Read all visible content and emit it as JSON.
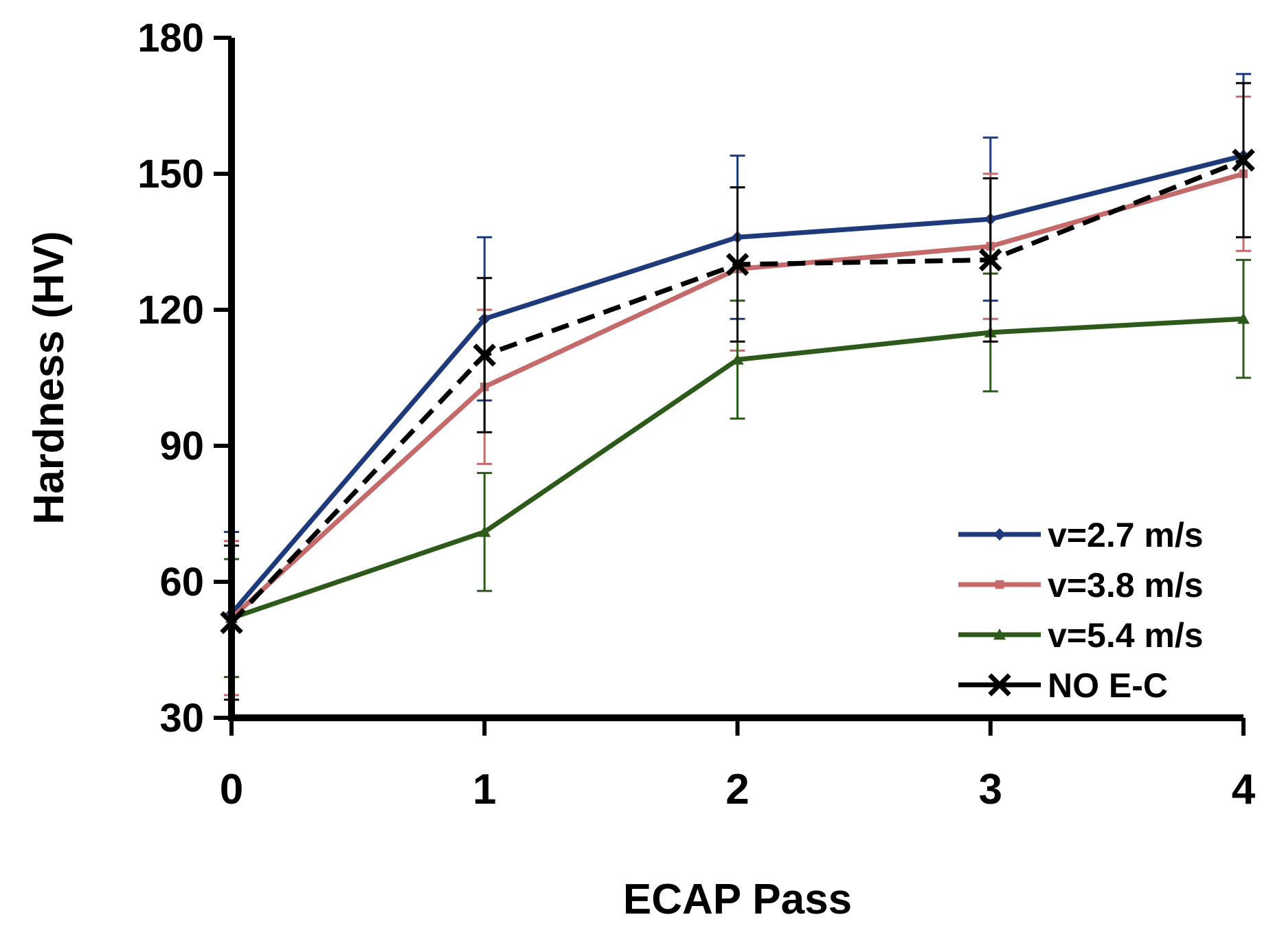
{
  "chart_data": {
    "type": "line",
    "title": "",
    "xlabel": "ECAP Pass",
    "ylabel": "Hardness (HV)",
    "x": [
      0,
      1,
      2,
      3,
      4
    ],
    "xlim": [
      0,
      4
    ],
    "ylim": [
      30,
      180
    ],
    "yticks": [
      30,
      60,
      90,
      120,
      150,
      180
    ],
    "xticks": [
      0,
      1,
      2,
      3,
      4
    ],
    "grid": false,
    "legend_position": "bottom-right",
    "series": [
      {
        "name": "v=2.7 m/s",
        "color": "#1f3a7a",
        "marker": "diamond",
        "dashed": false,
        "values": [
          53,
          118,
          136,
          140,
          154
        ],
        "errors": [
          18,
          18,
          18,
          18,
          18
        ]
      },
      {
        "name": "v=3.8 m/s",
        "color": "#c46a6a",
        "marker": "square",
        "dashed": false,
        "values": [
          52,
          103,
          129,
          134,
          150
        ],
        "errors": [
          17,
          17,
          18,
          16,
          17
        ]
      },
      {
        "name": "v=5.4 m/s",
        "color": "#2d5a1b",
        "marker": "triangle",
        "dashed": false,
        "values": [
          52,
          71,
          109,
          115,
          118
        ],
        "errors": [
          13,
          13,
          13,
          13,
          13
        ]
      },
      {
        "name": "NO E-C",
        "color": "#000000",
        "marker": "x",
        "dashed": true,
        "values": [
          51,
          110,
          130,
          131,
          153
        ],
        "errors": [
          17,
          17,
          17,
          18,
          17
        ]
      }
    ]
  }
}
